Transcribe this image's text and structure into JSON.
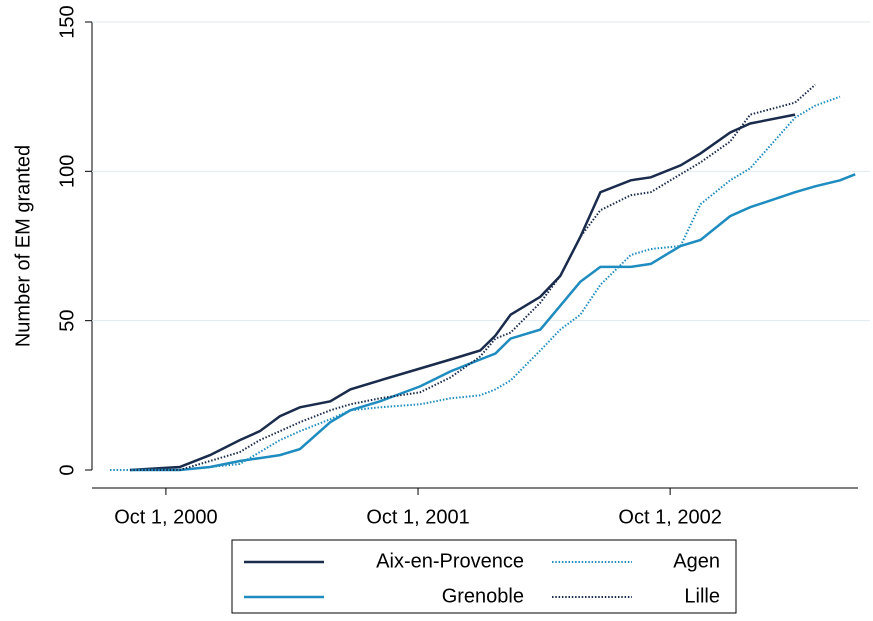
{
  "chart_data": {
    "type": "line",
    "ylabel": "Number of EM granted",
    "x": [
      "2000-07-12",
      "2000-08-10",
      "2000-10-21",
      "2000-12-04",
      "2001-01-16",
      "2001-02-14",
      "2001-03-15",
      "2001-04-13",
      "2001-05-27",
      "2001-06-25",
      "2001-08-07",
      "2001-10-04",
      "2001-11-17",
      "2001-12-30",
      "2002-01-21",
      "2002-02-12",
      "2002-03-27",
      "2002-04-25",
      "2002-05-24",
      "2002-06-22",
      "2002-08-05",
      "2002-09-03",
      "2002-10-16",
      "2002-11-14",
      "2002-12-27",
      "2003-01-25",
      "2003-03-31",
      "2003-04-29",
      "2003-06-04",
      "2003-06-26"
    ],
    "series": [
      {
        "name": "Aix-en-Provence",
        "color": "#1a2b4c",
        "style": "solid",
        "values": [
          null,
          0,
          1,
          5,
          10,
          13,
          18,
          21,
          23,
          27,
          30,
          34,
          37,
          40,
          45,
          52,
          58,
          65,
          78,
          93,
          97,
          98,
          102,
          106,
          113,
          116,
          119,
          null,
          null,
          null
        ]
      },
      {
        "name": "Agen",
        "color": "#1f8cbf",
        "style": "dotted",
        "values": [
          0,
          0,
          0,
          1,
          2,
          6,
          10,
          13,
          17,
          20,
          21,
          22,
          24,
          25,
          27,
          30,
          40,
          47,
          52,
          62,
          72,
          74,
          75,
          89,
          97,
          101,
          118,
          122,
          125,
          null
        ]
      },
      {
        "name": "Grenoble",
        "color": "#1f8cbf",
        "style": "solid",
        "values": [
          null,
          0,
          0,
          1,
          3,
          4,
          5,
          7,
          16,
          20,
          23,
          28,
          33,
          37,
          39,
          44,
          47,
          55,
          63,
          68,
          68,
          69,
          75,
          77,
          85,
          88,
          93,
          95,
          97,
          99
        ]
      },
      {
        "name": "Lille",
        "color": "#1a2b4c",
        "style": "dotted",
        "values": [
          null,
          0,
          0,
          3,
          6,
          10,
          13,
          16,
          20,
          22,
          24,
          26,
          31,
          38,
          44,
          46,
          56,
          65,
          78,
          87,
          92,
          93,
          99,
          103,
          110,
          119,
          123,
          129,
          null,
          null
        ]
      }
    ],
    "xlim": [
      "2000-06-16",
      "2003-06-30"
    ],
    "xticks": [
      {
        "value": "2000-10-01",
        "label": "Oct 1, 2000"
      },
      {
        "value": "2001-10-01",
        "label": "Oct 1, 2001"
      },
      {
        "value": "2002-10-01",
        "label": "Oct 1, 2002"
      }
    ],
    "ylim": [
      0,
      150
    ],
    "yticks": [
      0,
      50,
      100,
      150
    ],
    "grid": true,
    "legend": "bottom"
  }
}
